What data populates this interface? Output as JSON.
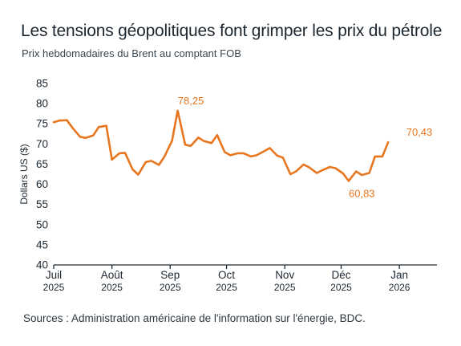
{
  "title": "Les tensions géopolitiques font grimper les prix du pétrole",
  "subtitle": "Prix hebdomadaires du Brent au comptant FOB",
  "source": "Sources : Administration américaine de l'information sur l'énergie, BDC.",
  "colors": {
    "line": "#e8761f",
    "axis": "#1f2a33",
    "text": "#1c2731"
  },
  "chart_data": {
    "type": "line",
    "title": "Les tensions géopolitiques font grimper les prix du pétrole",
    "subtitle": "Prix hebdomadaires du Brent au comptant FOB",
    "xlabel": "",
    "ylabel": "Dollars US ($)",
    "ylim": [
      40,
      85
    ],
    "yticks": [
      40,
      45,
      50,
      55,
      60,
      65,
      70,
      75,
      80,
      85
    ],
    "xlim": [
      "2025-07-01",
      "2026-01-21"
    ],
    "x_ticks": [
      {
        "date": "2025-07-01",
        "month": "Juil",
        "year": "2025"
      },
      {
        "date": "2025-08-01",
        "month": "Août",
        "year": "2025"
      },
      {
        "date": "2025-09-01",
        "month": "Sep",
        "year": "2025"
      },
      {
        "date": "2025-10-01",
        "month": "Oct",
        "year": "2025"
      },
      {
        "date": "2025-11-01",
        "month": "Nov",
        "year": "2025"
      },
      {
        "date": "2025-12-01",
        "month": "Déc",
        "year": "2025"
      },
      {
        "date": "2026-01-01",
        "month": "Jan",
        "year": "2026"
      }
    ],
    "grid": false,
    "legend": "none",
    "series": [
      {
        "color": "#e8761f",
        "x": [
          "2025-07-01",
          "2025-07-04",
          "2025-07-08",
          "2025-07-11",
          "2025-07-15",
          "2025-07-18",
          "2025-07-22",
          "2025-07-25",
          "2025-07-29",
          "2025-08-01",
          "2025-08-05",
          "2025-08-08",
          "2025-08-12",
          "2025-08-15",
          "2025-08-19",
          "2025-08-22",
          "2025-08-26",
          "2025-08-29",
          "2025-09-02",
          "2025-09-05",
          "2025-09-09",
          "2025-09-12",
          "2025-09-16",
          "2025-09-19",
          "2025-09-23",
          "2025-09-26",
          "2025-09-30",
          "2025-10-03",
          "2025-10-07",
          "2025-10-10",
          "2025-10-14",
          "2025-10-17",
          "2025-10-21",
          "2025-10-24",
          "2025-10-28",
          "2025-10-31",
          "2025-11-04",
          "2025-11-07",
          "2025-11-11",
          "2025-11-14",
          "2025-11-18",
          "2025-11-21",
          "2025-11-25",
          "2025-11-28",
          "2025-12-02",
          "2025-12-05",
          "2025-12-09",
          "2025-12-12",
          "2025-12-16",
          "2025-12-19",
          "2025-12-23",
          "2025-12-26",
          "2025-12-30",
          "2026-01-02",
          "2026-01-06",
          "2026-01-09",
          "2026-01-13",
          "2026-01-16",
          "2026-01-20"
        ],
        "values": [
          75.4,
          75.8,
          75.9,
          74.0,
          71.8,
          71.5,
          72.1,
          74.2,
          74.5,
          66.1,
          67.7,
          67.8,
          63.7,
          62.4,
          65.5,
          65.8,
          64.8,
          66.9,
          70.8,
          78.25,
          69.8,
          69.5,
          71.6,
          70.7,
          70.2,
          72.2,
          68.0,
          67.2,
          67.7,
          67.7,
          66.9,
          67.2,
          68.2,
          69.0,
          67.1,
          66.6,
          62.5,
          63.2,
          64.9,
          64.2,
          62.8,
          63.5,
          64.3,
          64.0,
          62.7,
          60.83,
          63.2,
          62.3,
          62.8,
          66.9,
          66.9,
          70.43,
          null,
          null,
          null,
          null,
          null,
          null,
          null
        ]
      }
    ],
    "annotations": [
      {
        "text": "78,25",
        "x": "2025-09-12",
        "y": 78.25
      },
      {
        "text": "60,83",
        "x": "2025-12-12",
        "y": 60.83
      },
      {
        "text": "70,43",
        "x": "2026-01-20",
        "y": 70.43
      }
    ]
  }
}
